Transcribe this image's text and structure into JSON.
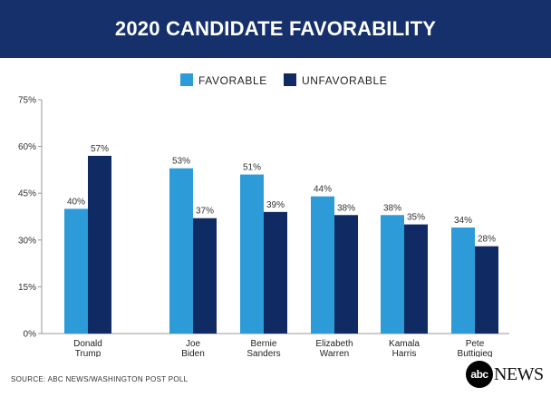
{
  "header": {
    "title": "2020 CANDIDATE FAVORABILITY"
  },
  "colors": {
    "header_bg": "#16306b",
    "favorable": "#2c9bd8",
    "unfavorable": "#102b63"
  },
  "chart_data": {
    "type": "bar",
    "title": "2020 CANDIDATE FAVORABILITY",
    "categories": [
      [
        "Donald",
        "Trump"
      ],
      [
        "Joe",
        "Biden"
      ],
      [
        "Bernie",
        "Sanders"
      ],
      [
        "Elizabeth",
        "Warren"
      ],
      [
        "Kamala",
        "Harris"
      ],
      [
        "Pete",
        "Buttigieg"
      ]
    ],
    "series": [
      {
        "name": "FAVORABLE",
        "color": "#2c9bd8",
        "values": [
          40,
          53,
          51,
          44,
          38,
          34
        ]
      },
      {
        "name": "UNFAVORABLE",
        "color": "#102b63",
        "values": [
          57,
          37,
          39,
          38,
          35,
          28
        ]
      }
    ],
    "ylim": [
      0,
      75
    ],
    "yticks": [
      "0%",
      "15%",
      "30%",
      "45%",
      "60%",
      "75%"
    ],
    "ytick_values": [
      0,
      15,
      30,
      45,
      60,
      75
    ],
    "value_suffix": "%",
    "legend_position": "top-center",
    "xlabel": "",
    "ylabel": ""
  },
  "footer": {
    "source": "SOURCE: ABC NEWS/WASHINGTON POST POLL",
    "logo_mark": "abc",
    "logo_text": "NEWS"
  }
}
